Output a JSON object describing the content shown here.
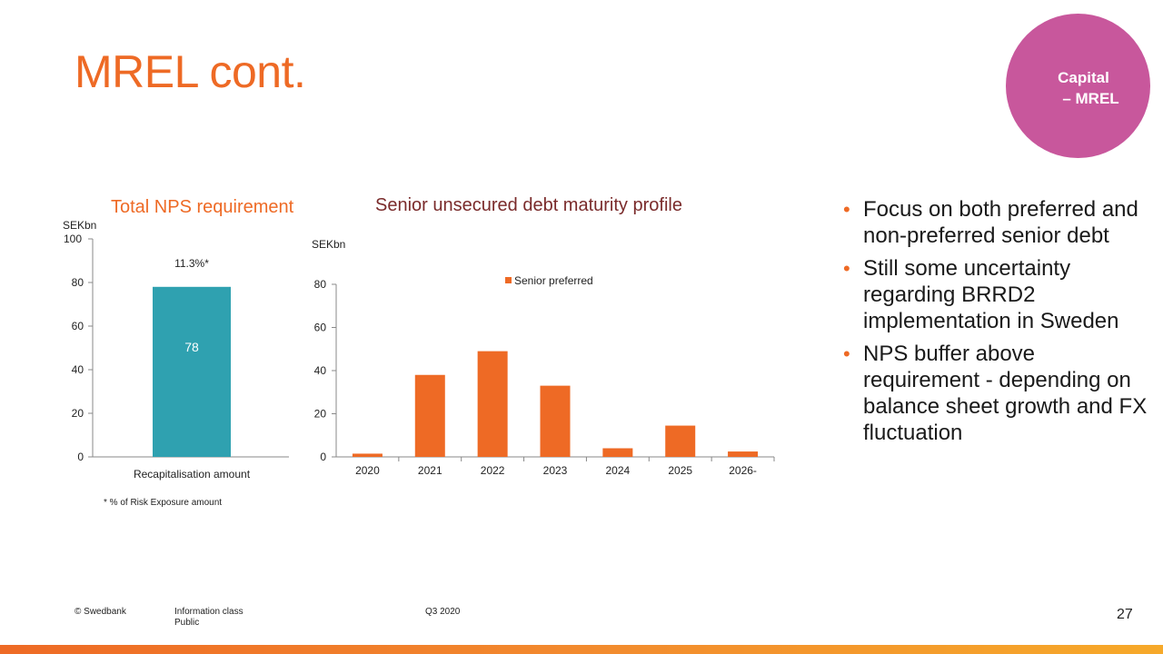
{
  "slide": {
    "title": "MREL cont.",
    "section": {
      "line1": "Capital",
      "line2": "– MREL"
    },
    "bullets": [
      "Focus on both preferred and non-preferred senior debt",
      "Still some uncertainty regarding BRRD2 implementation in Sweden",
      "NPS buffer above requirement - depending on balance sheet growth and FX fluctuation"
    ],
    "footnote": "* % of Risk Exposure amount",
    "footer": {
      "copyright": "© Swedbank",
      "info_class_label": "Information class",
      "info_class_value": "Public",
      "period": "Q3 2020",
      "page_number": "27"
    }
  },
  "colors": {
    "accent": "#ee6a25",
    "teal": "#2fa1b0",
    "badge": "#c8579c",
    "maroon_title": "#7a2b2b"
  },
  "chart_data": [
    {
      "type": "bar",
      "title": "Total NPS requirement",
      "unit_label": "SEKbn",
      "categories": [
        "Recapitalisation amount"
      ],
      "values": [
        78
      ],
      "data_labels": [
        "78"
      ],
      "annotations": [
        "11.3%*"
      ],
      "ylim": [
        0,
        100
      ],
      "yticks": [
        "0",
        "20",
        "40",
        "60",
        "80",
        "100"
      ],
      "color": "#2fa1b0",
      "grid": false
    },
    {
      "type": "bar",
      "title": "Senior unsecured debt maturity profile",
      "unit_label": "SEKbn",
      "categories": [
        "2020",
        "2021",
        "2022",
        "2023",
        "2024",
        "2025",
        "2026-"
      ],
      "series": [
        {
          "name": "Senior preferred",
          "values": [
            1.5,
            38,
            49,
            33,
            4,
            14.5,
            2.5
          ]
        }
      ],
      "ylim": [
        0,
        80
      ],
      "yticks": [
        "0",
        "20",
        "40",
        "60",
        "80"
      ],
      "legend": "top",
      "color": "#ee6a25",
      "grid": false
    }
  ]
}
